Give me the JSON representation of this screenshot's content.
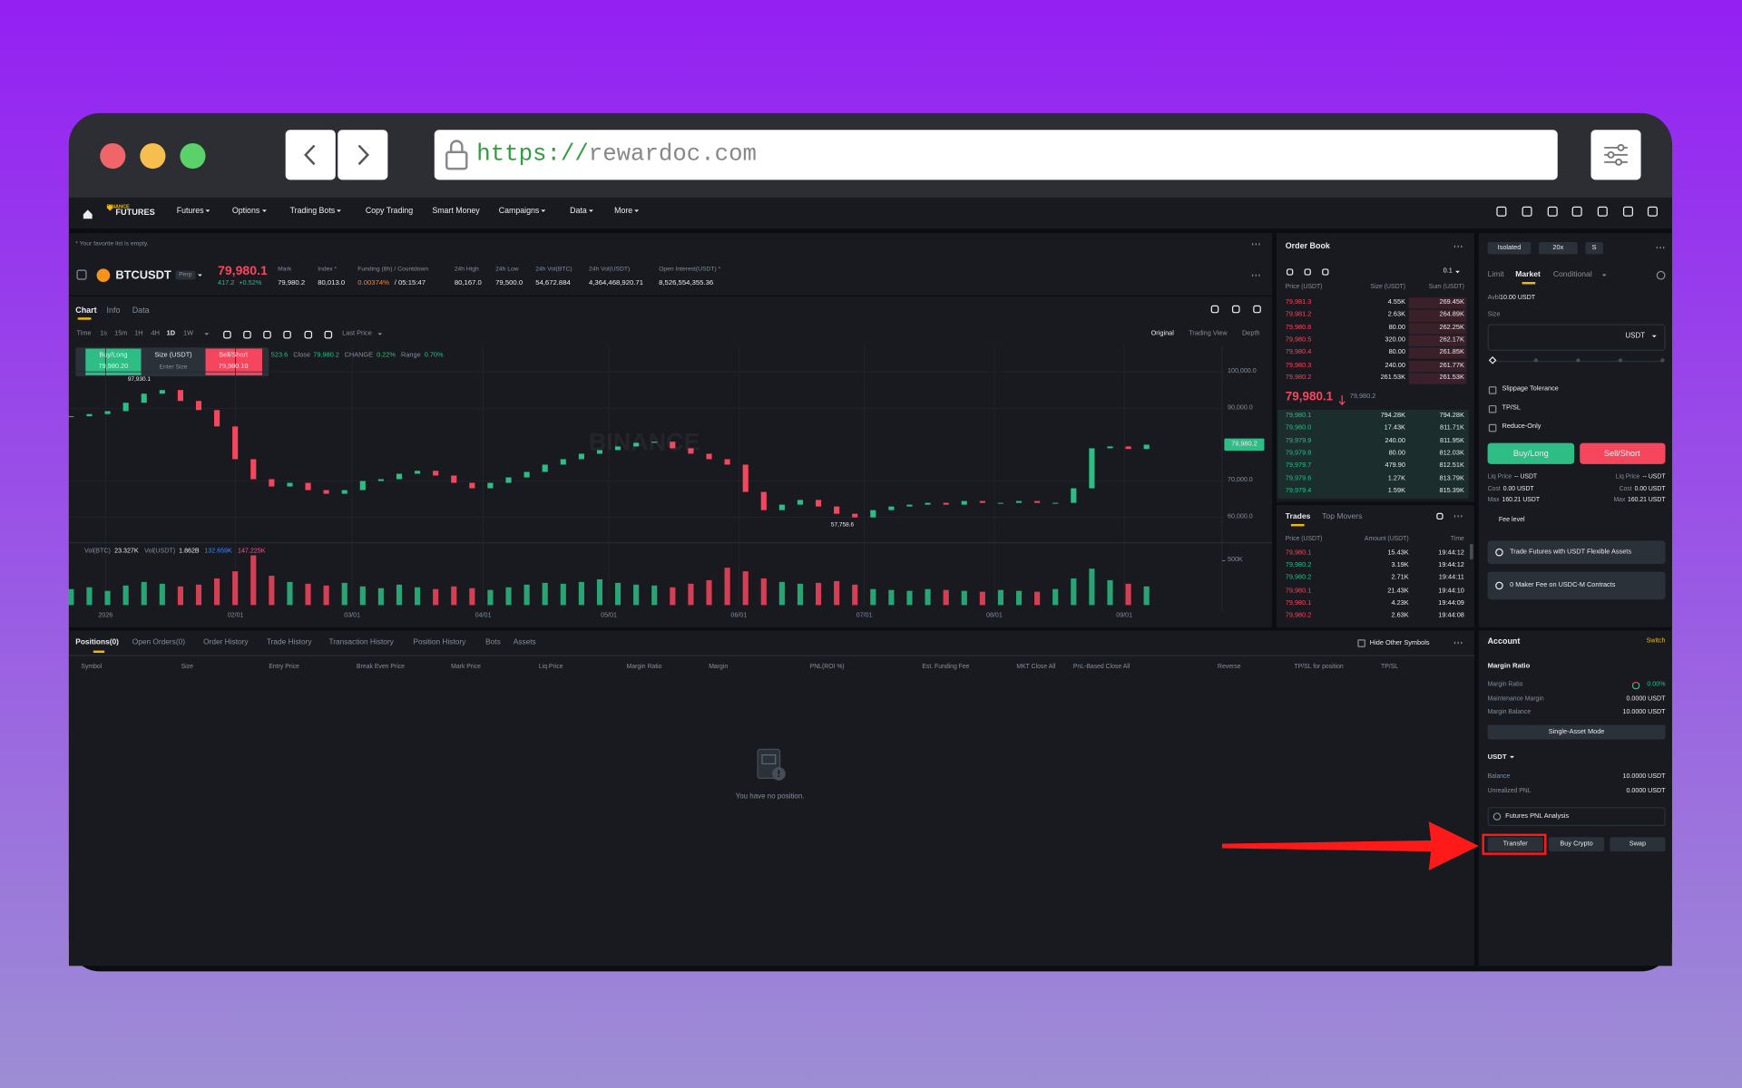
{
  "browser": {
    "url_scheme": "https://",
    "url_host": "rewardoc.com"
  },
  "nav": {
    "logo_top": "BINANCE",
    "logo_bottom": "FUTURES",
    "items": [
      "Futures",
      "Options",
      "Trading Bots",
      "Copy Trading",
      "Smart Money",
      "Campaigns",
      "Data",
      "More"
    ]
  },
  "market": {
    "favorites_note": "* Your favorite list is empty.",
    "symbol": "BTCUSDT",
    "badge": "Perp",
    "last_price": "79,980.1",
    "change": "417.2",
    "change_pct": "+0.52%",
    "stats": [
      {
        "label": "Mark",
        "value": "79,980.2"
      },
      {
        "label": "Index *",
        "value": "80,013.0"
      },
      {
        "label": "Funding (8h) / Countdown",
        "value": "0.00374%",
        "extra": "/ 05:15:47"
      },
      {
        "label": "24h High",
        "value": "80,167.0"
      },
      {
        "label": "24h Low",
        "value": "79,500.0"
      },
      {
        "label": "24h Vol(BTC)",
        "value": "54,672.884"
      },
      {
        "label": "24h Vol(USDT)",
        "value": "4,364,468,920.71"
      },
      {
        "label": "Open Interest(USDT) *",
        "value": "8,526,554,355.36"
      }
    ]
  },
  "chart_tabs": [
    "Chart",
    "Info",
    "Data"
  ],
  "intervals": [
    "Time",
    "1s",
    "15m",
    "1H",
    "4H",
    "1D",
    "1W"
  ],
  "price_source": "Last Price",
  "views": [
    "Original",
    "Trading View",
    "Depth"
  ],
  "quick_trade": {
    "buy": "Buy/Long",
    "buy_price": "79,980.20",
    "size": "Size (USDT)",
    "size_hint": "Enter Size",
    "sell": "Sell/Short",
    "sell_price": "79,980.10"
  },
  "ohlc_legend": [
    {
      "value": "523.6"
    },
    {
      "label": "Close",
      "value": "79,980.2"
    },
    {
      "label": "CHANGE",
      "value": "0.22%"
    },
    {
      "label": "Range",
      "value": "0.70%"
    }
  ],
  "chart_data": {
    "type": "candlestick",
    "watermark": "BINANCE",
    "closes": [
      87800,
      88400,
      89200,
      91500,
      94000,
      95000,
      92000,
      89500,
      85000,
      76000,
      70500,
      68500,
      69500,
      67500,
      66500,
      67500,
      70000,
      70500,
      72000,
      72800,
      71500,
      69500,
      68000,
      69500,
      71000,
      72500,
      74500,
      76000,
      77500,
      78500,
      79500,
      80500,
      80800,
      79000,
      77500,
      76000,
      74500,
      67000,
      62000,
      63500,
      64800,
      63000,
      61000,
      60000,
      62000,
      63000,
      63500,
      64000,
      63500,
      64500,
      64000,
      64000,
      64500,
      64000,
      64000,
      68000,
      79000,
      79500,
      78800,
      79980
    ],
    "ylim": [
      53300,
      107000
    ],
    "yticks": [
      {
        "value": 60000,
        "label": "60,000.0"
      },
      {
        "value": 70000,
        "label": "70,000.0"
      },
      {
        "value": 90000,
        "label": "90,000.0"
      },
      {
        "value": 100000,
        "label": "100,000.0"
      }
    ],
    "last_price_tag": "79,980.2",
    "annotations": [
      "97,930.1",
      "57,758.6"
    ],
    "x_labels": [
      "2026",
      "02/01",
      "03/01",
      "04/01",
      "05/01",
      "06/01",
      "07/01",
      "08/01",
      "09/01"
    ],
    "volume": {
      "legend": [
        {
          "label": "Vol(BTC)",
          "value": "23.327K"
        },
        {
          "label": "Vol(USDT)",
          "value": "1.862B"
        },
        {
          "value": "132.659K"
        },
        {
          "value": "147.225K"
        }
      ],
      "values": [
        180000,
        200000,
        160000,
        220000,
        260000,
        240000,
        210000,
        230000,
        300000,
        380000,
        560000,
        330000,
        260000,
        240000,
        220000,
        250000,
        210000,
        190000,
        230000,
        200000,
        180000,
        210000,
        190000,
        170000,
        200000,
        230000,
        250000,
        240000,
        260000,
        290000,
        250000,
        230000,
        220000,
        200000,
        240000,
        280000,
        420000,
        380000,
        300000,
        260000,
        240000,
        250000,
        270000,
        230000,
        180000,
        170000,
        160000,
        180000,
        170000,
        160000,
        150000,
        170000,
        160000,
        150000,
        180000,
        300000,
        410000,
        280000,
        240000,
        210000
      ],
      "ylim": [
        0,
        687500
      ],
      "yticks": [
        {
          "value": 500000,
          "label": "500K"
        }
      ]
    }
  },
  "order_book": {
    "title": "Order Book",
    "tick_size": "0.1",
    "columns": [
      "Price (USDT)",
      "Size (USDT)",
      "Sum (USDT)"
    ],
    "asks": [
      [
        "79,981.3",
        "4.55K",
        "269.45K"
      ],
      [
        "79,981.2",
        "2.63K",
        "264.89K"
      ],
      [
        "79,980.6",
        "80.00",
        "262.25K"
      ],
      [
        "79,980.5",
        "320.00",
        "262.17K"
      ],
      [
        "79,980.4",
        "80.00",
        "261.85K"
      ],
      [
        "79,980.3",
        "240.00",
        "261.77K"
      ],
      [
        "79,980.2",
        "261.53K",
        "261.53K"
      ]
    ],
    "mid_price": "79,980.1",
    "mark_price": "79,980.2",
    "bids": [
      [
        "79,980.1",
        "794.28K",
        "794.28K"
      ],
      [
        "79,980.0",
        "17.43K",
        "811.71K"
      ],
      [
        "79,979.9",
        "240.00",
        "811.95K"
      ],
      [
        "79,979.8",
        "80.00",
        "812.03K"
      ],
      [
        "79,979.7",
        "479.90",
        "812.51K"
      ],
      [
        "79,979.6",
        "1.27K",
        "813.79K"
      ],
      [
        "79,979.4",
        "1.59K",
        "815.39K"
      ]
    ]
  },
  "trades": {
    "tabs": [
      "Trades",
      "Top Movers"
    ],
    "columns": [
      "Price (USDT)",
      "Amount (USDT)",
      "Time"
    ],
    "rows": [
      {
        "price": "79,980.1",
        "amount": "15.43K",
        "time": "19:44:12",
        "side": "sell"
      },
      {
        "price": "79,980.2",
        "amount": "3.19K",
        "time": "19:44:12",
        "side": "buy"
      },
      {
        "price": "79,980.2",
        "amount": "2.71K",
        "time": "19:44:11",
        "side": "buy"
      },
      {
        "price": "79,980.1",
        "amount": "21.43K",
        "time": "19:44:10",
        "side": "sell"
      },
      {
        "price": "79,980.1",
        "amount": "4.23K",
        "time": "19:44:09",
        "side": "sell"
      },
      {
        "price": "79,980.2",
        "amount": "2.63K",
        "time": "19:44:08",
        "side": "sell"
      }
    ]
  },
  "order_form": {
    "margin_mode": "Isolated",
    "leverage": "20x",
    "asset_mode": "S",
    "tabs": [
      "Limit",
      "Market",
      "Conditional"
    ],
    "avbl_label": "Avbl",
    "avbl": "10.00 USDT",
    "size_label": "Size",
    "size_unit": "USDT",
    "options": [
      "Slippage Tolerance",
      "TP/SL",
      "Reduce-Only"
    ],
    "buy": "Buy/Long",
    "sell": "Sell/Short",
    "details": [
      {
        "label": "Liq Price",
        "value": "-- USDT"
      },
      {
        "label": "Cost",
        "value": "0.00 USDT"
      },
      {
        "label": "Max",
        "value": "160.21 USDT"
      }
    ],
    "fee_level": "Fee level",
    "banners": [
      "Trade Futures with USDT Flexible Assets",
      "0 Maker Fee on USDC-M Contracts"
    ]
  },
  "positions": {
    "tabs": [
      "Positions(0)",
      "Open Orders(0)",
      "Order History",
      "Trade History",
      "Transaction History",
      "Position History",
      "Bots",
      "Assets"
    ],
    "hide_other": "Hide Other Symbols",
    "columns": [
      "Symbol",
      "Size",
      "Entry Price",
      "Break Even Price",
      "Mark Price",
      "Liq Price",
      "Margin Ratio",
      "Margin",
      "PNL(ROI %)",
      "Est. Funding Fee",
      "MKT Close All",
      "PnL-Based Close All",
      "Reverse",
      "TP/SL for position",
      "TP/SL"
    ],
    "empty": "You have no position."
  },
  "account": {
    "title": "Account",
    "switch": "Switch",
    "margin_ratio_title": "Margin Ratio",
    "rows": [
      {
        "label": "Margin Ratio",
        "value": "0.00%"
      },
      {
        "label": "Maintenance Margin",
        "value": "0.0000 USDT"
      },
      {
        "label": "Margin Balance",
        "value": "10.0000 USDT"
      }
    ],
    "single_asset": "Single-Asset Mode",
    "asset": "USDT",
    "asset_rows": [
      {
        "label": "Balance",
        "value": "10.0000 USDT"
      },
      {
        "label": "Unrealized PNL",
        "value": "0.0000 USDT"
      }
    ],
    "pnl_analysis": "Futures PNL Analysis",
    "actions": [
      "Transfer",
      "Buy Crypto",
      "Swap"
    ]
  }
}
